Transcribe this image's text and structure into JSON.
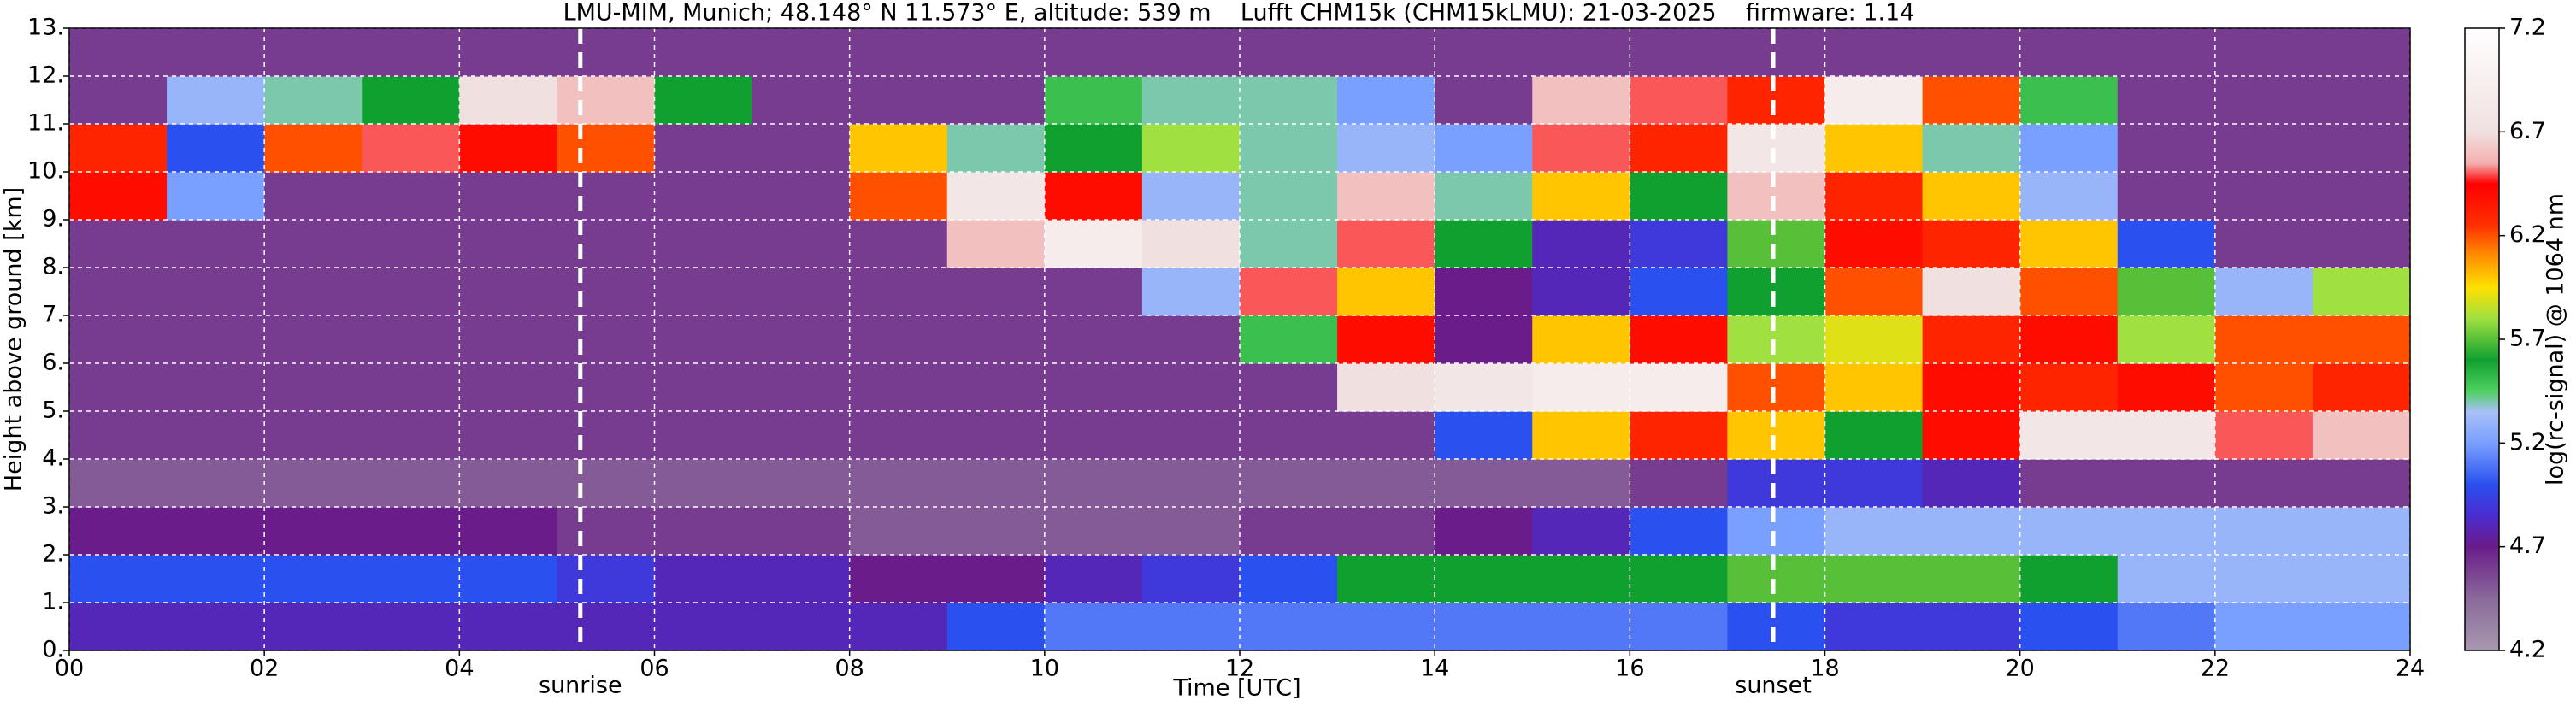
{
  "chart_data": {
    "type": "heatmap",
    "title": "LMU-MIM, Munich; 48.148° N 11.573° E, altitude: 539 m    Lufft CHM15k (CHM15kLMU): 21-03-2025    firmware: 1.14",
    "x_label": "Time [UTC]",
    "y_label": "Height above ground [km]",
    "colorbar_label": "log(rc-signal) @ 1064 nm",
    "xbins": [
      0,
      1,
      2,
      3,
      4,
      5,
      6,
      7,
      8,
      9,
      10,
      11,
      12,
      13,
      14,
      15,
      16,
      17,
      18,
      19,
      20,
      21,
      22,
      23,
      24
    ],
    "ybins": [
      0,
      1,
      2,
      3,
      4,
      5,
      6,
      7,
      8,
      9,
      10,
      11,
      12,
      13
    ],
    "z": [
      [
        4.8,
        4.8,
        4.8,
        4.8,
        4.8,
        4.8,
        4.8,
        4.8,
        4.8,
        5.0,
        5.1,
        5.1,
        5.1,
        5.1,
        5.1,
        5.1,
        5.1,
        5.0,
        4.9,
        4.9,
        5.0,
        5.1,
        5.2,
        5.2
      ],
      [
        5.0,
        5.0,
        5.0,
        5.0,
        5.0,
        4.9,
        4.8,
        4.8,
        4.7,
        4.7,
        4.8,
        4.9,
        5.0,
        5.6,
        5.6,
        5.6,
        5.6,
        5.7,
        5.7,
        5.7,
        5.6,
        5.3,
        5.3,
        5.3
      ],
      [
        4.7,
        4.7,
        4.7,
        4.7,
        4.7,
        4.6,
        4.6,
        4.6,
        4.5,
        4.5,
        4.5,
        4.5,
        4.6,
        4.6,
        4.7,
        4.8,
        5.0,
        5.2,
        5.3,
        5.3,
        5.3,
        5.3,
        5.3,
        5.3
      ],
      [
        4.5,
        4.5,
        4.5,
        4.5,
        4.5,
        4.5,
        4.5,
        4.5,
        4.5,
        4.5,
        4.5,
        4.5,
        4.5,
        4.5,
        4.5,
        4.5,
        4.6,
        4.9,
        4.9,
        4.8,
        4.6,
        4.6,
        4.6,
        4.6
      ],
      [
        4.6,
        4.6,
        4.6,
        4.6,
        4.6,
        4.6,
        4.6,
        4.6,
        4.6,
        4.6,
        4.6,
        4.6,
        4.6,
        4.6,
        5.0,
        6.0,
        6.3,
        6.0,
        5.6,
        6.4,
        6.8,
        6.8,
        6.5,
        6.6
      ],
      [
        4.6,
        4.6,
        4.6,
        4.6,
        4.6,
        4.6,
        4.6,
        4.6,
        4.6,
        4.6,
        4.6,
        4.6,
        4.6,
        6.7,
        6.8,
        6.9,
        6.9,
        6.2,
        6.0,
        6.4,
        6.3,
        6.4,
        6.2,
        6.3
      ],
      [
        4.6,
        4.6,
        4.6,
        4.6,
        4.6,
        4.6,
        4.6,
        4.6,
        4.6,
        4.6,
        4.6,
        4.6,
        5.5,
        6.4,
        4.7,
        6.0,
        6.4,
        5.8,
        5.9,
        6.3,
        6.4,
        5.8,
        6.2,
        6.2
      ],
      [
        4.6,
        4.6,
        4.6,
        4.6,
        4.6,
        4.6,
        4.6,
        4.6,
        4.6,
        4.6,
        4.6,
        5.3,
        6.5,
        6.0,
        4.7,
        4.8,
        5.0,
        5.6,
        6.2,
        6.7,
        6.2,
        5.7,
        5.3,
        5.8
      ],
      [
        4.6,
        4.6,
        4.6,
        4.6,
        4.6,
        4.6,
        4.6,
        4.6,
        4.6,
        6.6,
        6.9,
        6.7,
        5.4,
        6.5,
        5.6,
        4.8,
        4.9,
        5.7,
        6.4,
        6.3,
        6.0,
        5.0,
        4.6,
        4.6
      ],
      [
        6.4,
        5.2,
        4.6,
        4.6,
        4.6,
        4.6,
        4.6,
        4.6,
        6.2,
        6.8,
        6.4,
        5.3,
        5.4,
        6.6,
        5.4,
        6.0,
        5.6,
        6.6,
        6.3,
        6.0,
        5.3,
        4.6,
        4.6,
        4.6
      ],
      [
        6.3,
        5.0,
        6.2,
        6.5,
        6.4,
        6.2,
        4.6,
        4.6,
        6.0,
        5.4,
        5.6,
        5.8,
        5.4,
        5.3,
        5.2,
        6.5,
        6.3,
        6.8,
        6.0,
        5.4,
        5.2,
        4.6,
        4.6,
        4.6
      ],
      [
        4.6,
        5.3,
        5.4,
        5.6,
        6.7,
        6.6,
        5.6,
        4.6,
        4.6,
        4.6,
        5.5,
        5.4,
        5.4,
        5.2,
        4.6,
        6.6,
        6.5,
        6.3,
        6.9,
        6.2,
        5.5,
        4.6,
        4.6,
        4.6
      ],
      [
        4.6,
        4.6,
        4.6,
        4.6,
        4.6,
        4.6,
        4.6,
        4.6,
        4.6,
        4.6,
        4.6,
        4.6,
        4.6,
        4.6,
        4.6,
        4.6,
        4.6,
        4.6,
        4.6,
        4.6,
        4.6,
        4.6,
        4.6,
        4.6
      ]
    ],
    "xlim": [
      0,
      24
    ],
    "ylim": [
      0,
      13
    ],
    "zlim": [
      4.2,
      7.2
    ],
    "xticks": [
      {
        "value": 0,
        "label": "00"
      },
      {
        "value": 2,
        "label": "02"
      },
      {
        "value": 4,
        "label": "04"
      },
      {
        "value": 6,
        "label": "06"
      },
      {
        "value": 8,
        "label": "08"
      },
      {
        "value": 10,
        "label": "10"
      },
      {
        "value": 12,
        "label": "12"
      },
      {
        "value": 14,
        "label": "14"
      },
      {
        "value": 16,
        "label": "16"
      },
      {
        "value": 18,
        "label": "18"
      },
      {
        "value": 20,
        "label": "20"
      },
      {
        "value": 22,
        "label": "22"
      },
      {
        "value": 24,
        "label": "24"
      }
    ],
    "yticks": [
      {
        "value": 0,
        "label": "0."
      },
      {
        "value": 1,
        "label": "1."
      },
      {
        "value": 2,
        "label": "2."
      },
      {
        "value": 3,
        "label": "3."
      },
      {
        "value": 4,
        "label": "4."
      },
      {
        "value": 5,
        "label": "5."
      },
      {
        "value": 6,
        "label": "6."
      },
      {
        "value": 7,
        "label": "7."
      },
      {
        "value": 8,
        "label": "8."
      },
      {
        "value": 9,
        "label": "9."
      },
      {
        "value": 10,
        "label": "10."
      },
      {
        "value": 11,
        "label": "11."
      },
      {
        "value": 12,
        "label": "12."
      },
      {
        "value": 13,
        "label": "13."
      }
    ],
    "zticks": [
      4.2,
      4.7,
      5.2,
      5.7,
      6.2,
      6.7,
      7.2
    ],
    "colorscale": [
      [
        4.2,
        "#a898b0"
      ],
      [
        4.45,
        "#8a6a9a"
      ],
      [
        4.7,
        "#6a1c8a"
      ],
      [
        4.85,
        "#4a2cd0"
      ],
      [
        5.0,
        "#2a50f0"
      ],
      [
        5.2,
        "#7aa0ff"
      ],
      [
        5.35,
        "#a8c0f8"
      ],
      [
        5.45,
        "#50d060"
      ],
      [
        5.6,
        "#10a030"
      ],
      [
        5.8,
        "#a0e040"
      ],
      [
        5.95,
        "#ffe000"
      ],
      [
        6.1,
        "#ff9000"
      ],
      [
        6.25,
        "#ff3000"
      ],
      [
        6.45,
        "#ff0000"
      ],
      [
        6.55,
        "#f4b0b0"
      ],
      [
        6.7,
        "#f0e0e0"
      ],
      [
        7.2,
        "#ffffff"
      ]
    ],
    "grid": true,
    "annotations": [
      {
        "label": "sunrise",
        "x": 5.24
      },
      {
        "label": "sunset",
        "x": 17.47
      }
    ]
  }
}
